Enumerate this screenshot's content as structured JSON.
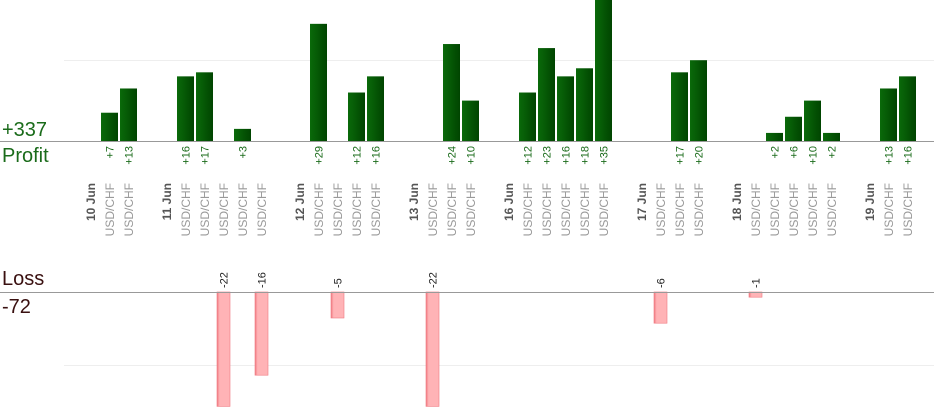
{
  "labels": {
    "profit_total": "+337",
    "profit_word": "Profit",
    "loss_word": "Loss",
    "loss_total": "-72"
  },
  "colors": {
    "profit_bar": "#0a6a0a",
    "profit_bar_dark": "#004400",
    "profit_text": "#1a6b1a",
    "loss_bar": "#ffb3b6",
    "loss_bar_edge": "#f07880",
    "loss_text": "#222222",
    "axis": "#999999",
    "grid": "#eeeeee",
    "day_label": "#555555",
    "pair_label": "#999999"
  },
  "chart_data": {
    "type": "bar",
    "title": "",
    "xlabel": "",
    "ylabel": "",
    "profit_ylim": [
      0,
      35
    ],
    "loss_ylim": [
      0,
      22
    ],
    "grid": true,
    "columns": [
      {
        "kind": "day",
        "label": "10 Jun"
      },
      {
        "kind": "trade",
        "label": "USD/CHF",
        "pl": 7,
        "text": "+7"
      },
      {
        "kind": "trade",
        "label": "USD/CHF",
        "pl": 13,
        "text": "+13"
      },
      {
        "kind": "gap"
      },
      {
        "kind": "day",
        "label": "11 Jun"
      },
      {
        "kind": "trade",
        "label": "USD/CHF",
        "pl": 16,
        "text": "+16"
      },
      {
        "kind": "trade",
        "label": "USD/CHF",
        "pl": 17,
        "text": "+17"
      },
      {
        "kind": "trade",
        "label": "USD/CHF",
        "pl": -22,
        "text": "-22"
      },
      {
        "kind": "trade",
        "label": "USD/CHF",
        "pl": 3,
        "text": "+3"
      },
      {
        "kind": "trade",
        "label": "USD/CHF",
        "pl": -16,
        "text": "-16"
      },
      {
        "kind": "gap"
      },
      {
        "kind": "day",
        "label": "12 Jun"
      },
      {
        "kind": "trade",
        "label": "USD/CHF",
        "pl": 29,
        "text": "+29"
      },
      {
        "kind": "trade",
        "label": "USD/CHF",
        "pl": -5,
        "text": "-5"
      },
      {
        "kind": "trade",
        "label": "USD/CHF",
        "pl": 12,
        "text": "+12"
      },
      {
        "kind": "trade",
        "label": "USD/CHF",
        "pl": 16,
        "text": "+16"
      },
      {
        "kind": "gap"
      },
      {
        "kind": "day",
        "label": "13 Jun"
      },
      {
        "kind": "trade",
        "label": "USD/CHF",
        "pl": -22,
        "text": "-22"
      },
      {
        "kind": "trade",
        "label": "USD/CHF",
        "pl": 24,
        "text": "+24"
      },
      {
        "kind": "trade",
        "label": "USD/CHF",
        "pl": 10,
        "text": "+10"
      },
      {
        "kind": "gap"
      },
      {
        "kind": "day",
        "label": "16 Jun"
      },
      {
        "kind": "trade",
        "label": "USD/CHF",
        "pl": 12,
        "text": "+12"
      },
      {
        "kind": "trade",
        "label": "USD/CHF",
        "pl": 23,
        "text": "+23"
      },
      {
        "kind": "trade",
        "label": "USD/CHF",
        "pl": 16,
        "text": "+16"
      },
      {
        "kind": "trade",
        "label": "USD/CHF",
        "pl": 18,
        "text": "+18"
      },
      {
        "kind": "trade",
        "label": "USD/CHF",
        "pl": 35,
        "text": "+35"
      },
      {
        "kind": "gap"
      },
      {
        "kind": "day",
        "label": "17 Jun"
      },
      {
        "kind": "trade",
        "label": "USD/CHF",
        "pl": -6,
        "text": "-6"
      },
      {
        "kind": "trade",
        "label": "USD/CHF",
        "pl": 17,
        "text": "+17"
      },
      {
        "kind": "trade",
        "label": "USD/CHF",
        "pl": 20,
        "text": "+20"
      },
      {
        "kind": "gap"
      },
      {
        "kind": "day",
        "label": "18 Jun"
      },
      {
        "kind": "trade",
        "label": "USD/CHF",
        "pl": -1,
        "text": "-1"
      },
      {
        "kind": "trade",
        "label": "USD/CHF",
        "pl": 2,
        "text": "+2"
      },
      {
        "kind": "trade",
        "label": "USD/CHF",
        "pl": 6,
        "text": "+6"
      },
      {
        "kind": "trade",
        "label": "USD/CHF",
        "pl": 10,
        "text": "+10"
      },
      {
        "kind": "trade",
        "label": "USD/CHF",
        "pl": 2,
        "text": "+2"
      },
      {
        "kind": "gap"
      },
      {
        "kind": "day",
        "label": "19 Jun"
      },
      {
        "kind": "trade",
        "label": "USD/CHF",
        "pl": 13,
        "text": "+13"
      },
      {
        "kind": "trade",
        "label": "USD/CHF",
        "pl": 16,
        "text": "+16"
      }
    ]
  }
}
